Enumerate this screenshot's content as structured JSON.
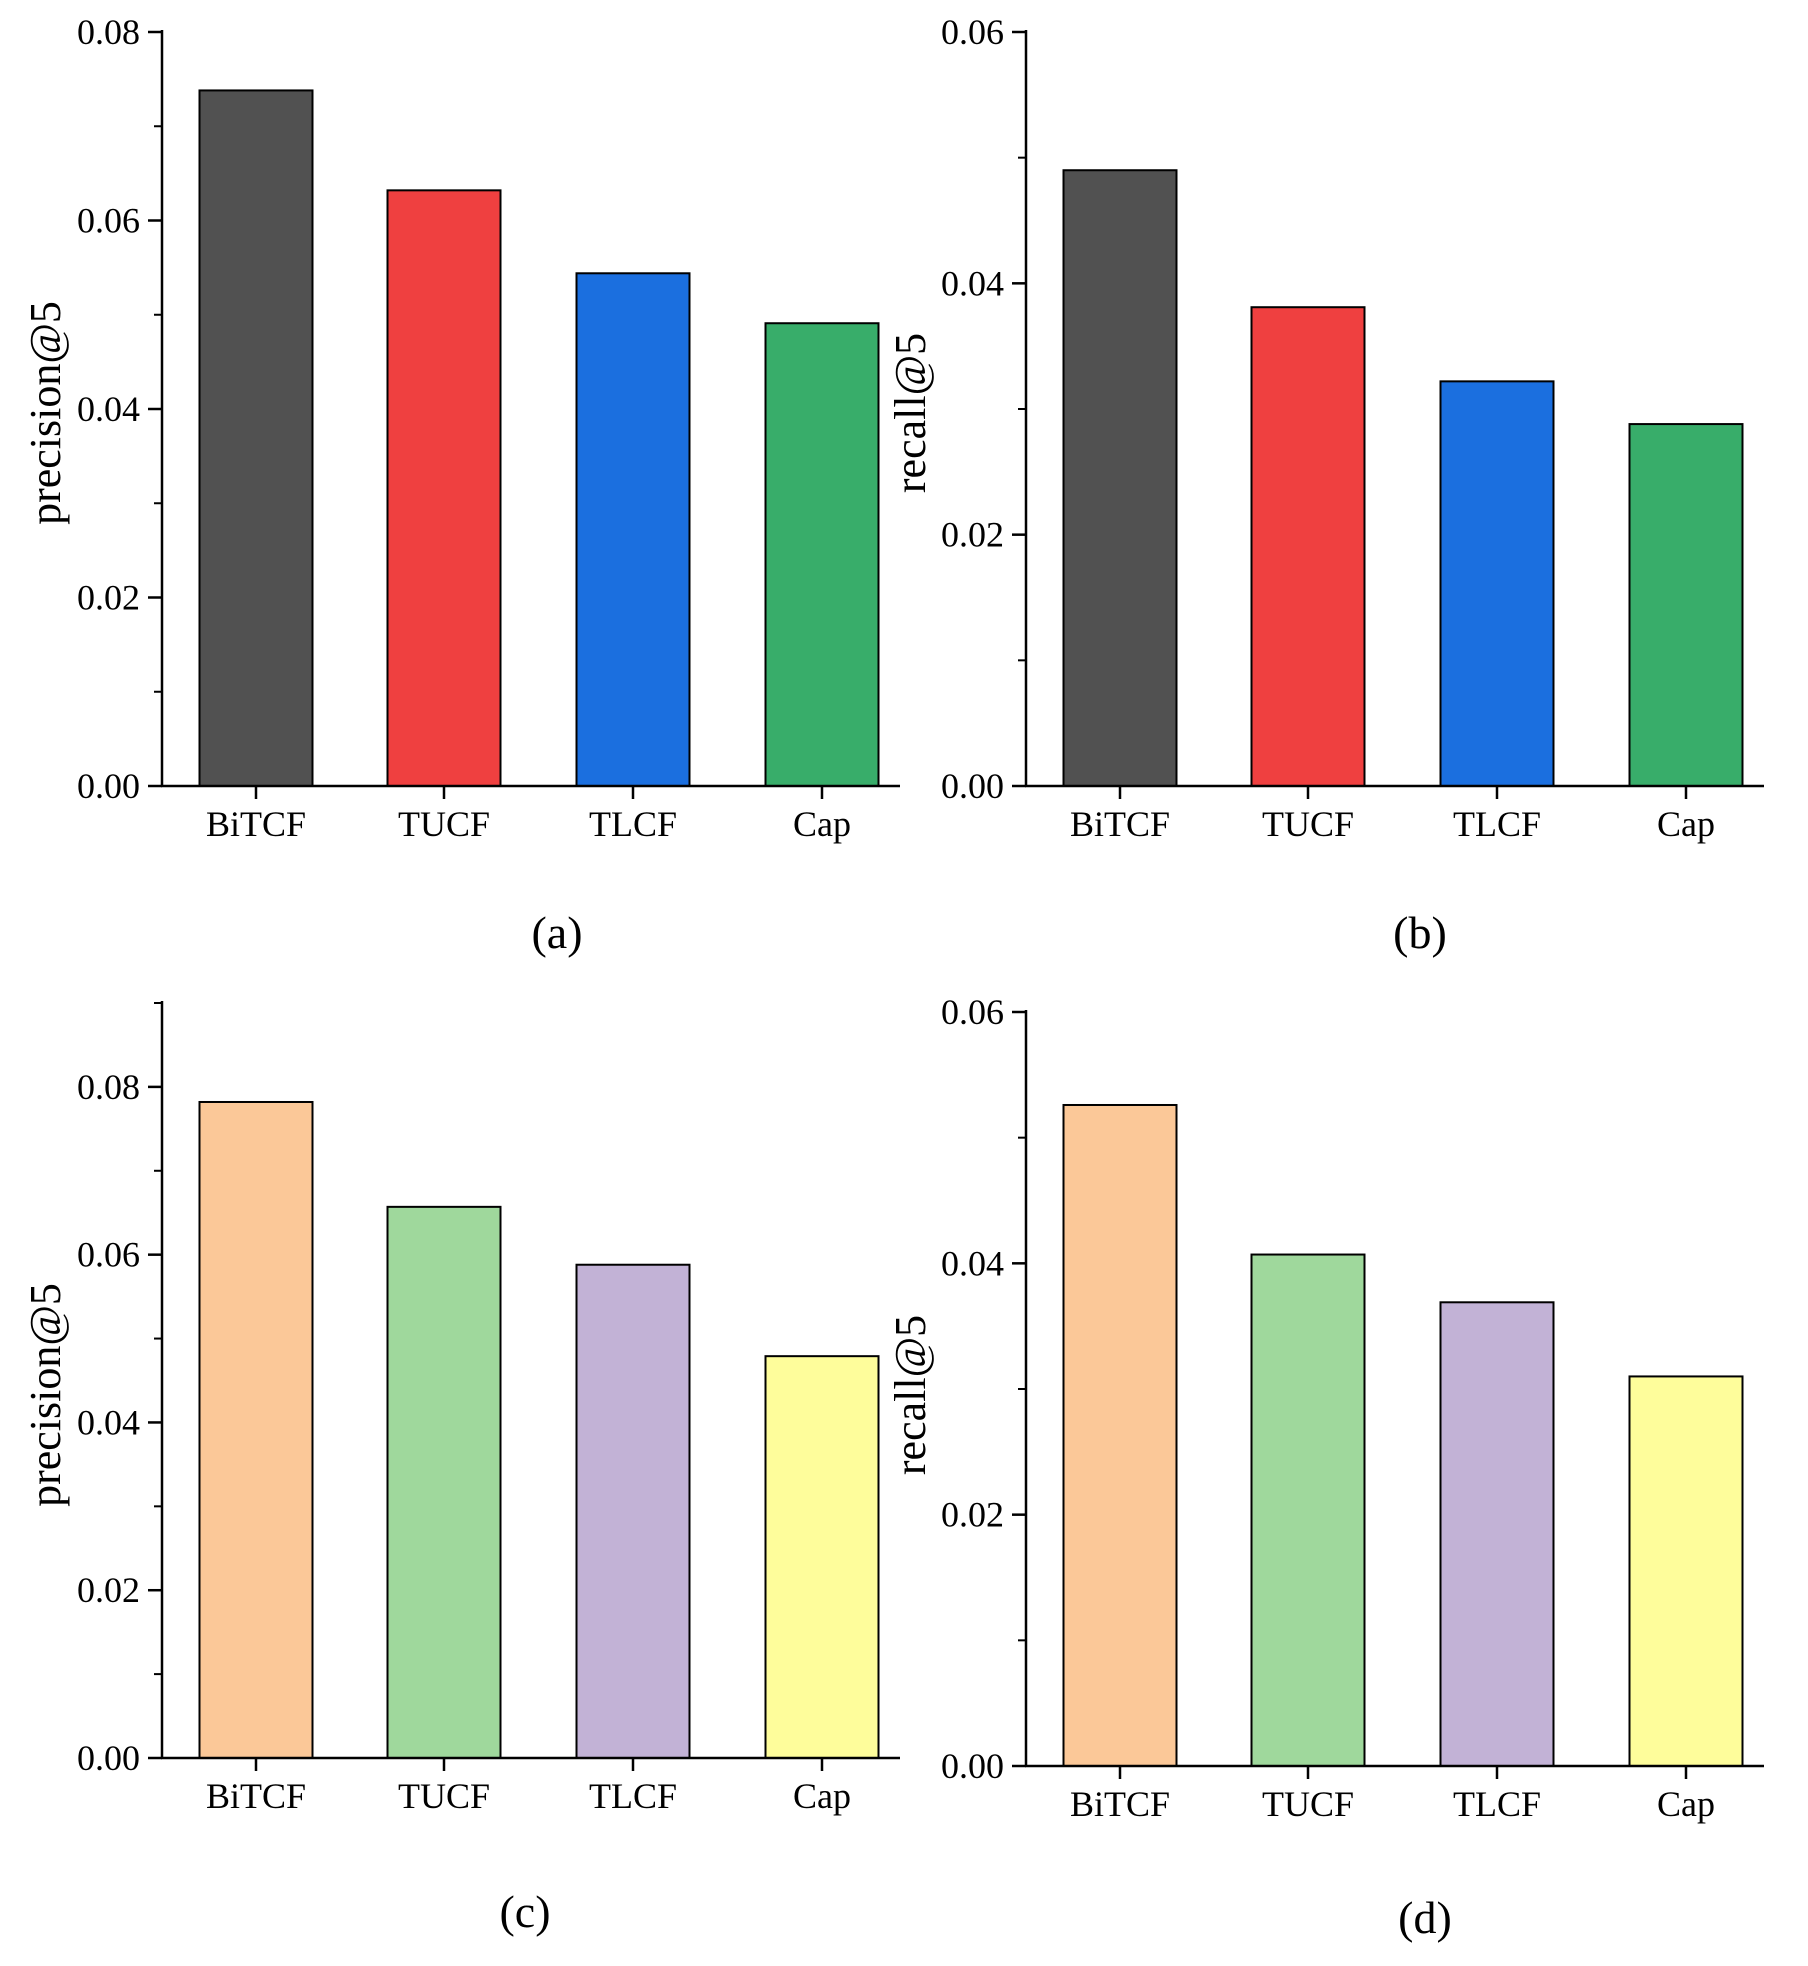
{
  "figure": {
    "panels": [
      "(a)",
      "(b)",
      "(c)",
      "(d)"
    ]
  },
  "chart_data": [
    {
      "type": "bar",
      "panel_label": "(a)",
      "categories": [
        "BiTCF",
        "TUCF",
        "TLCF",
        "Cap"
      ],
      "values": [
        0.0738,
        0.0632,
        0.0544,
        0.0491
      ],
      "colors": [
        "#515151",
        "#ef4040",
        "#1b6fdf",
        "#38ad6a"
      ],
      "title": "",
      "xlabel": "",
      "ylabel": "precision@5",
      "ylim": [
        0,
        0.08
      ],
      "yticks": [
        0.0,
        0.02,
        0.04,
        0.06,
        0.08
      ],
      "ytick_labels": [
        "0.00",
        "0.02",
        "0.04",
        "0.06",
        "0.08"
      ],
      "grid": false
    },
    {
      "type": "bar",
      "panel_label": "(b)",
      "categories": [
        "BiTCF",
        "TUCF",
        "TLCF",
        "Cap"
      ],
      "values": [
        0.049,
        0.0381,
        0.0322,
        0.0288
      ],
      "colors": [
        "#515151",
        "#ef4040",
        "#1b6fdf",
        "#38ad6a"
      ],
      "title": "",
      "xlabel": "",
      "ylabel": "recall@5",
      "ylim": [
        0,
        0.06
      ],
      "yticks": [
        0.0,
        0.02,
        0.04,
        0.06
      ],
      "ytick_labels": [
        "0.00",
        "0.02",
        "0.04",
        "0.06"
      ],
      "grid": false
    },
    {
      "type": "bar",
      "panel_label": "(c)",
      "categories": [
        "BiTCF",
        "TUCF",
        "TLCF",
        "Cap"
      ],
      "values": [
        0.0782,
        0.0657,
        0.0588,
        0.0479
      ],
      "colors": [
        "#fbc898",
        "#9fd89c",
        "#c2b2d6",
        "#fefd9b"
      ],
      "title": "",
      "xlabel": "",
      "ylabel": "precision@5",
      "ylim": [
        0,
        0.09
      ],
      "yticks": [
        0.0,
        0.02,
        0.04,
        0.06,
        0.08
      ],
      "ytick_labels": [
        "0.00",
        "0.02",
        "0.04",
        "0.06",
        "0.08"
      ],
      "grid": false
    },
    {
      "type": "bar",
      "panel_label": "(d)",
      "categories": [
        "BiTCF",
        "TUCF",
        "TLCF",
        "Cap"
      ],
      "values": [
        0.0526,
        0.0407,
        0.0369,
        0.031
      ],
      "colors": [
        "#fbc898",
        "#9fd89c",
        "#c2b2d6",
        "#fefd9b"
      ],
      "title": "",
      "xlabel": "",
      "ylabel": "recall@5",
      "ylim": [
        0,
        0.06
      ],
      "yticks": [
        0.0,
        0.02,
        0.04,
        0.06
      ],
      "ytick_labels": [
        "0.00",
        "0.02",
        "0.04",
        "0.06"
      ],
      "grid": false
    }
  ]
}
